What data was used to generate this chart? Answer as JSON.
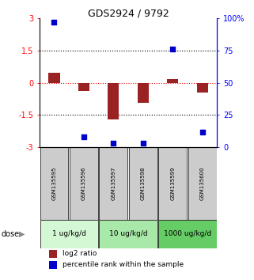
{
  "title": "GDS2924 / 9792",
  "samples": [
    "GSM135595",
    "GSM135596",
    "GSM135597",
    "GSM135598",
    "GSM135599",
    "GSM135600"
  ],
  "log2_ratio_vals": [
    0.45,
    -0.4,
    -1.7,
    -0.95,
    0.15,
    -0.45
  ],
  "percentile_rank": [
    97,
    8,
    3,
    3,
    76,
    12
  ],
  "dose_groups": [
    {
      "label": "1 ug/kg/d",
      "span": [
        1,
        2
      ],
      "color": "#d4f7d4"
    },
    {
      "label": "10 ug/kg/d",
      "span": [
        3,
        4
      ],
      "color": "#a8e8a8"
    },
    {
      "label": "1000 ug/kg/d",
      "span": [
        5,
        6
      ],
      "color": "#66cc66"
    }
  ],
  "bar_color": "#9B2222",
  "dot_color": "#0000CC",
  "ylim_left": [
    -3,
    3
  ],
  "ylim_right": [
    0,
    100
  ],
  "yticks_left": [
    -3,
    -1.5,
    0,
    1.5,
    3
  ],
  "yticks_right": [
    0,
    25,
    50,
    75,
    100
  ],
  "ytick_labels_left": [
    "-3",
    "-1.5",
    "0",
    "1.5",
    "3"
  ],
  "ytick_labels_right": [
    "0",
    "25",
    "50",
    "75",
    "100%"
  ],
  "sample_box_color": "#cccccc",
  "bg_color": "#ffffff",
  "title_fontsize": 9,
  "tick_fontsize": 7,
  "sample_fontsize": 5,
  "dose_fontsize": 6.5,
  "legend_fontsize": 6.5
}
